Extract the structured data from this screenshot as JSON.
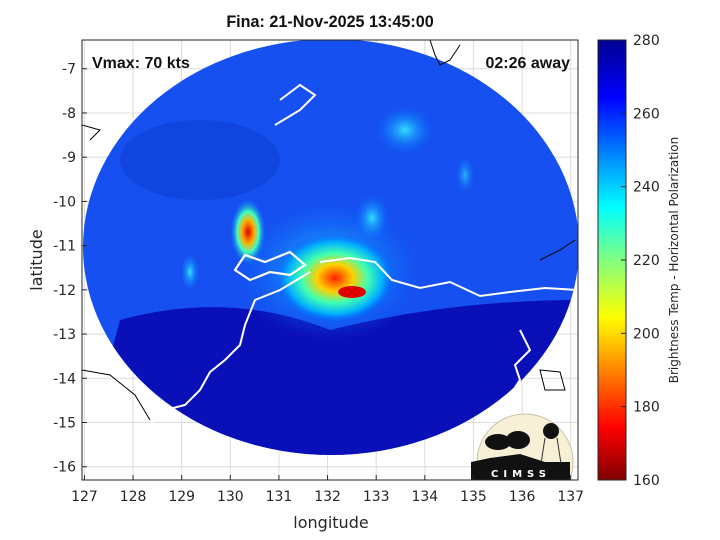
{
  "title": "Fina: 21-Nov-2025 13:45:00",
  "annotations": {
    "vmax": "Vmax: 70 kts",
    "time_away": "02:26 away"
  },
  "logo_text": "CIMSS",
  "chart_data": {
    "type": "heatmap",
    "title": "Fina: 21-Nov-2025 13:45:00",
    "xlabel": "longitude",
    "ylabel": "latitude",
    "xlim": [
      126.95,
      137.15
    ],
    "ylim": [
      -16.3,
      -6.35
    ],
    "xticks": [
      "127",
      "128",
      "129",
      "130",
      "131",
      "132",
      "133",
      "134",
      "135",
      "136",
      "137"
    ],
    "yticks": [
      "-7",
      "-8",
      "-9",
      "-10",
      "-11",
      "-12",
      "-13",
      "-14",
      "-15",
      "-16"
    ],
    "grid": true,
    "colorbar": {
      "label": "Brightness Temp - Horizontal Polarization",
      "range": [
        160,
        280
      ],
      "ticks": [
        "160",
        "180",
        "200",
        "220",
        "240",
        "260",
        "280"
      ]
    },
    "features": [
      {
        "name": "storm center",
        "lon": 132.0,
        "lat": -11.8,
        "min_temp": 185
      },
      {
        "name": "rainband west",
        "lon": 130.3,
        "lat": -10.9,
        "min_temp": 185
      },
      {
        "name": "rainband north",
        "lon": 133.2,
        "lat": -8.3,
        "min_temp": 235
      }
    ]
  }
}
